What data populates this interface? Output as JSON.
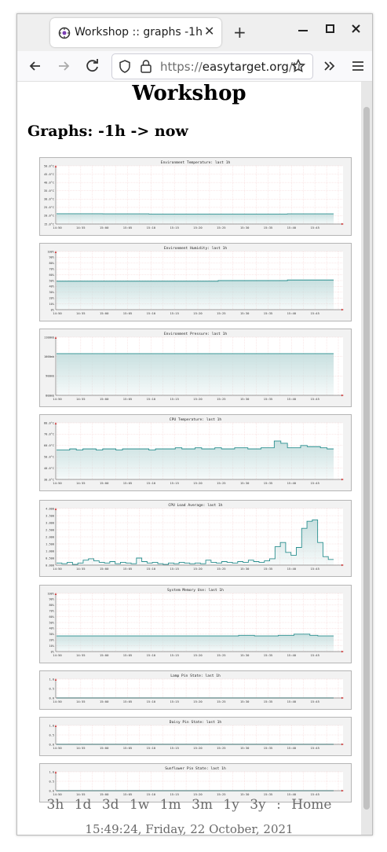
{
  "browser": {
    "tab_title": "Workshop :: graphs -1h",
    "url_scheme": "https://",
    "url_host": "easytarget.org",
    "url_rest": "/tr"
  },
  "page": {
    "heading": "Workshop",
    "subheading": "Graphs: -1h -> now",
    "range_links": [
      "3h",
      "1d",
      "3d",
      "1w",
      "1m",
      "3m",
      "1y",
      "3y"
    ],
    "separator": ":",
    "home_link": "Home",
    "timestamp": "15:49:24, Friday, 22 October, 2021"
  },
  "chart_data": [
    {
      "type": "area",
      "title": "Environment Temperature: last 1h",
      "yticks": [
        "15.0°C",
        "20.0°C",
        "25.0°C",
        "30.0°C",
        "35.0°C",
        "40.0°C",
        "45.0°C",
        "50.0°C"
      ],
      "ylim": [
        15,
        50
      ],
      "xticks": [
        "14:50",
        "14:55",
        "15:00",
        "15:05",
        "15:10",
        "15:15",
        "15:20",
        "15:25",
        "15:30",
        "15:35",
        "15:40",
        "15:45"
      ],
      "series": [
        {
          "values": [
            21.2,
            21.2,
            21.1,
            21.1,
            21.0,
            21.0,
            21.0,
            21.0,
            21.0,
            21.0,
            21.1,
            21.1
          ]
        }
      ]
    },
    {
      "type": "area",
      "title": "Environment Humidity: last 1h",
      "yticks": [
        "0%",
        "10%",
        "20%",
        "30%",
        "40%",
        "50%",
        "60%",
        "70%",
        "80%",
        "90%",
        "100%"
      ],
      "ylim": [
        0,
        100
      ],
      "xticks": [
        "14:50",
        "14:55",
        "15:00",
        "15:05",
        "15:10",
        "15:15",
        "15:20",
        "15:25",
        "15:30",
        "15:35",
        "15:40",
        "15:45"
      ],
      "series": [
        {
          "values": [
            49,
            49,
            49,
            49,
            49,
            49,
            49,
            50,
            50,
            50,
            51,
            51
          ]
        }
      ]
    },
    {
      "type": "area",
      "title": "Environment Pressure: last 1h",
      "yticks": [
        "800mb",
        "900mb",
        "1000mb",
        "1100mb"
      ],
      "ylim": [
        800,
        1100
      ],
      "xticks": [
        "14:50",
        "14:55",
        "15:00",
        "15:05",
        "15:10",
        "15:15",
        "15:20",
        "15:25",
        "15:30",
        "15:35",
        "15:40",
        "15:45"
      ],
      "series": [
        {
          "values": [
            1015,
            1015,
            1015,
            1015,
            1015,
            1015,
            1015,
            1015,
            1015,
            1015,
            1015,
            1015
          ]
        }
      ]
    },
    {
      "type": "area",
      "title": "CPU Temperature: last 1h",
      "yticks": [
        "30.0°C",
        "40.0°C",
        "50.0°C",
        "60.0°C",
        "70.0°C",
        "80.0°C"
      ],
      "ylim": [
        30,
        80
      ],
      "xticks": [
        "14:50",
        "14:55",
        "15:00",
        "15:05",
        "15:10",
        "15:15",
        "15:20",
        "15:25",
        "15:30",
        "15:35",
        "15:40",
        "15:45"
      ],
      "series": [
        {
          "values": [
            56,
            56,
            57,
            56,
            57,
            57,
            56,
            57,
            57,
            56,
            57,
            57,
            57,
            57,
            56,
            57,
            57,
            57,
            58,
            57,
            57,
            58,
            57,
            57,
            58,
            57,
            57,
            58,
            58,
            57,
            57,
            58,
            58,
            64,
            62,
            58,
            58,
            60,
            59,
            59,
            58,
            57
          ]
        }
      ]
    },
    {
      "type": "area",
      "title": "CPU Load Average: last 1h",
      "yticks": [
        "0.000",
        "0.500",
        "1.000",
        "1.500",
        "2.000",
        "2.500",
        "3.000",
        "3.500",
        "4.000"
      ],
      "ylim": [
        0,
        4
      ],
      "xticks": [
        "14:50",
        "14:55",
        "15:00",
        "15:05",
        "15:10",
        "15:15",
        "15:20",
        "15:25",
        "15:30",
        "15:35",
        "15:40",
        "15:45"
      ],
      "series": [
        {
          "values": [
            0.15,
            0.1,
            0.2,
            0.05,
            0.15,
            0.35,
            0.45,
            0.3,
            0.2,
            0.15,
            0.25,
            0.1,
            0.2,
            0.15,
            0.1,
            0.5,
            0.25,
            0.15,
            0.2,
            0.1,
            0.05,
            0.15,
            0.1,
            0.2,
            0.15,
            0.1,
            0.15,
            0.1,
            0.35,
            0.2,
            0.15,
            0.25,
            0.2,
            0.15,
            0.25,
            0.2,
            0.35,
            0.25,
            0.2,
            0.3,
            0.45,
            1.3,
            1.6,
            0.9,
            0.7,
            1.25,
            2.6,
            3.1,
            3.2,
            1.6,
            0.6,
            0.4
          ]
        }
      ]
    },
    {
      "type": "area",
      "title": "System Memory Use: last 1h",
      "yticks": [
        "0%",
        "10%",
        "20%",
        "30%",
        "40%",
        "50%",
        "60%",
        "70%",
        "80%",
        "90%",
        "100%"
      ],
      "ylim": [
        0,
        100
      ],
      "xticks": [
        "14:50",
        "14:55",
        "15:00",
        "15:05",
        "15:10",
        "15:15",
        "15:20",
        "15:25",
        "15:30",
        "15:35",
        "15:40",
        "15:45"
      ],
      "series": [
        {
          "values": [
            27,
            27,
            27,
            27,
            27,
            27,
            27,
            27,
            27,
            27,
            27,
            27,
            27,
            27,
            27,
            27,
            27,
            27,
            27,
            27,
            27,
            27,
            27,
            28,
            28,
            27,
            27,
            27,
            28,
            28,
            30,
            30,
            28,
            27,
            27
          ]
        }
      ]
    },
    {
      "type": "line",
      "title": "Lamp Pin State: last 1h",
      "yticks": [
        "0.0",
        "0.5",
        "1.0"
      ],
      "ylim": [
        0,
        1
      ],
      "xticks": [
        "14:50",
        "14:55",
        "15:00",
        "15:05",
        "15:10",
        "15:15",
        "15:20",
        "15:25",
        "15:30",
        "15:35",
        "15:40",
        "15:45"
      ],
      "series": [
        {
          "values": [
            0,
            0,
            0,
            0,
            0,
            0,
            0,
            0,
            0,
            0,
            0,
            0
          ]
        }
      ]
    },
    {
      "type": "line",
      "title": "Daisy Pin State: last 1h",
      "yticks": [
        "0.0",
        "0.5",
        "1.0"
      ],
      "ylim": [
        0,
        1
      ],
      "xticks": [
        "14:50",
        "14:55",
        "15:00",
        "15:05",
        "15:10",
        "15:15",
        "15:20",
        "15:25",
        "15:30",
        "15:35",
        "15:40",
        "15:45"
      ],
      "series": [
        {
          "values": [
            0,
            0,
            0,
            0,
            0,
            0,
            0,
            0,
            0,
            0,
            0,
            0
          ]
        }
      ]
    },
    {
      "type": "line",
      "title": "Sunflower Pin State: last 1h",
      "yticks": [
        "0.0",
        "0.5",
        "1.0"
      ],
      "ylim": [
        0,
        1
      ],
      "xticks": [
        "14:50",
        "14:55",
        "15:00",
        "15:05",
        "15:10",
        "15:15",
        "15:20",
        "15:25",
        "15:30",
        "15:35",
        "15:40",
        "15:45"
      ],
      "series": [
        {
          "values": [
            0,
            0,
            0,
            0,
            0,
            0,
            0,
            0,
            0,
            0,
            0,
            0
          ]
        }
      ]
    }
  ],
  "colors": {
    "line": "#2a8f8f",
    "fill": "#c5dede",
    "grid": "#f3c4c4",
    "frame": "#f2f2f2"
  }
}
